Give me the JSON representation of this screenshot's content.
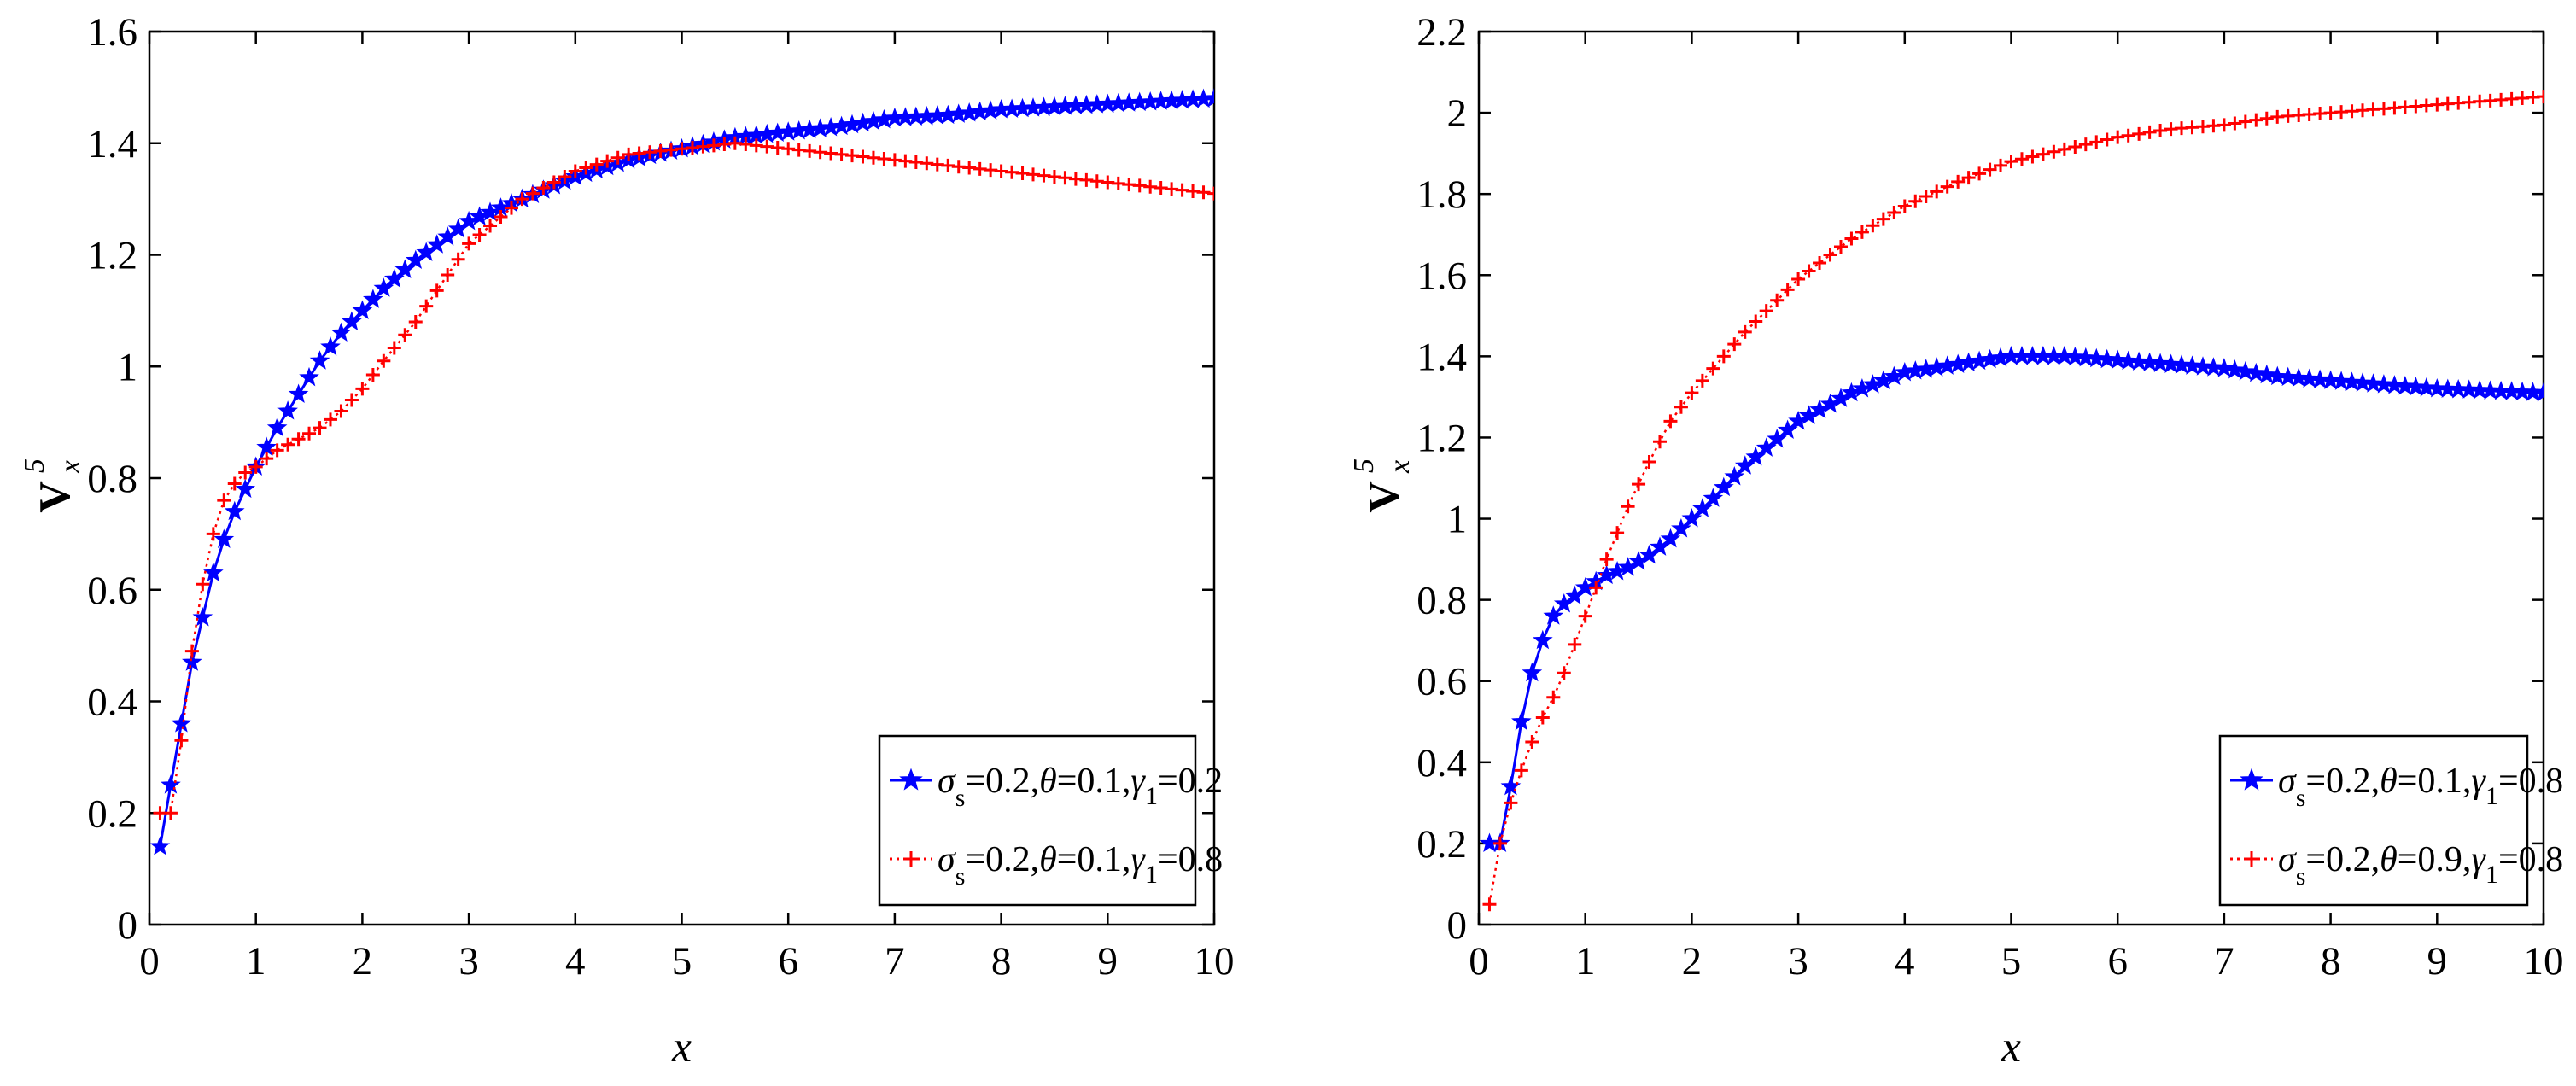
{
  "chart_data": [
    {
      "type": "line",
      "xlabel": "x",
      "ylabel": {
        "main": "V",
        "sup": "5",
        "sub": "x"
      },
      "xlim": [
        0,
        10
      ],
      "ylim": [
        0,
        1.6
      ],
      "xticks": [
        0,
        1,
        2,
        3,
        4,
        5,
        6,
        7,
        8,
        9,
        10
      ],
      "yticks": [
        0,
        0.2,
        0.4,
        0.6,
        0.8,
        1,
        1.2,
        1.4,
        1.6
      ],
      "xtick_labels": [
        "0",
        "1",
        "2",
        "3",
        "4",
        "5",
        "6",
        "7",
        "8",
        "9",
        "10"
      ],
      "ytick_labels": [
        "0",
        "0.2",
        "0.4",
        "0.6",
        "0.8",
        "1",
        "1.2",
        "1.4",
        "1.6"
      ],
      "legend_position": "bottom-right",
      "series": [
        {
          "name": "σs=0.2,θ=0.1,γ1=0.2",
          "legend": {
            "sigma": "σ",
            "sigma_sub": "s",
            "text1": "=0.2,",
            "theta": "θ",
            "text2": "=0.1,",
            "gamma": "γ",
            "gamma_sub": "1",
            "text3": "=0.2"
          },
          "color": "#0000ff",
          "line_style": "solid",
          "marker": "star",
          "x": [
            0.1,
            0.2,
            0.3,
            0.4,
            0.5,
            0.6,
            0.7,
            0.8,
            0.9,
            1.0,
            1.2,
            1.4,
            1.6,
            1.8,
            2.0,
            2.2,
            2.5,
            3.0,
            3.5,
            4.0,
            4.5,
            5.0,
            5.5,
            6.0,
            6.5,
            7.0,
            7.5,
            8.0,
            8.5,
            9.0,
            9.5,
            10.0
          ],
          "y": [
            0.14,
            0.25,
            0.36,
            0.47,
            0.55,
            0.63,
            0.69,
            0.74,
            0.78,
            0.82,
            0.89,
            0.95,
            1.01,
            1.06,
            1.1,
            1.14,
            1.19,
            1.26,
            1.3,
            1.34,
            1.37,
            1.39,
            1.41,
            1.42,
            1.43,
            1.445,
            1.45,
            1.46,
            1.465,
            1.47,
            1.475,
            1.48
          ]
        },
        {
          "name": "σs=0.2,θ=0.1,γ1=0.8",
          "legend": {
            "sigma": "σ",
            "sigma_sub": "s",
            "text1": "=0.2,",
            "theta": "θ",
            "text2": "=0.1,",
            "gamma": "γ",
            "gamma_sub": "1",
            "text3": "=0.8"
          },
          "color": "#ff0000",
          "line_style": "dotted",
          "marker": "plus",
          "x": [
            0.1,
            0.2,
            0.3,
            0.4,
            0.5,
            0.6,
            0.7,
            0.8,
            0.9,
            1.0,
            1.2,
            1.4,
            1.6,
            1.8,
            2.0,
            2.2,
            2.5,
            3.0,
            3.5,
            4.0,
            4.5,
            5.0,
            5.5,
            6.0,
            6.5,
            7.0,
            7.5,
            8.0,
            8.5,
            9.0,
            9.5,
            10.0
          ],
          "y": [
            0.2,
            0.2,
            0.33,
            0.49,
            0.61,
            0.7,
            0.76,
            0.79,
            0.81,
            0.82,
            0.85,
            0.87,
            0.89,
            0.92,
            0.96,
            1.01,
            1.08,
            1.22,
            1.3,
            1.35,
            1.38,
            1.39,
            1.4,
            1.39,
            1.38,
            1.37,
            1.36,
            1.35,
            1.34,
            1.33,
            1.32,
            1.31
          ]
        }
      ]
    },
    {
      "type": "line",
      "xlabel": "x",
      "ylabel": {
        "main": "V",
        "sup": "5",
        "sub": "x"
      },
      "xlim": [
        0,
        10
      ],
      "ylim": [
        0,
        2.2
      ],
      "xticks": [
        0,
        1,
        2,
        3,
        4,
        5,
        6,
        7,
        8,
        9,
        10
      ],
      "yticks": [
        0,
        0.2,
        0.4,
        0.6,
        0.8,
        1,
        1.2,
        1.4,
        1.6,
        1.8,
        2,
        2.2
      ],
      "xtick_labels": [
        "0",
        "1",
        "2",
        "3",
        "4",
        "5",
        "6",
        "7",
        "8",
        "9",
        "10"
      ],
      "ytick_labels": [
        "0",
        "0.2",
        "0.4",
        "0.6",
        "0.8",
        "1",
        "1.2",
        "1.4",
        "1.6",
        "1.8",
        "2",
        "2.2"
      ],
      "legend_position": "bottom-right",
      "series": [
        {
          "name": "σs=0.2,θ=0.1,γ1=0.8",
          "legend": {
            "sigma": "σ",
            "sigma_sub": "s",
            "text1": "=0.2,",
            "theta": "θ",
            "text2": "=0.1,",
            "gamma": "γ",
            "gamma_sub": "1",
            "text3": "=0.8"
          },
          "color": "#0000ff",
          "line_style": "solid",
          "marker": "star",
          "x": [
            0.1,
            0.2,
            0.3,
            0.4,
            0.5,
            0.6,
            0.7,
            0.8,
            0.9,
            1.0,
            1.2,
            1.4,
            1.6,
            1.8,
            2.0,
            2.2,
            2.5,
            3.0,
            3.5,
            4.0,
            4.5,
            5.0,
            5.5,
            6.0,
            6.5,
            7.0,
            7.5,
            8.0,
            8.5,
            9.0,
            9.5,
            10.0
          ],
          "y": [
            0.2,
            0.2,
            0.34,
            0.5,
            0.62,
            0.7,
            0.76,
            0.79,
            0.81,
            0.83,
            0.86,
            0.88,
            0.91,
            0.95,
            1.0,
            1.05,
            1.13,
            1.24,
            1.31,
            1.36,
            1.38,
            1.4,
            1.4,
            1.39,
            1.38,
            1.37,
            1.35,
            1.34,
            1.33,
            1.32,
            1.315,
            1.31
          ]
        },
        {
          "name": "σs=0.2,θ=0.9,γ1=0.8",
          "legend": {
            "sigma": "σ",
            "sigma_sub": "s",
            "text1": "=0.2,",
            "theta": "θ",
            "text2": "=0.9,",
            "gamma": "γ",
            "gamma_sub": "1",
            "text3": "=0.8"
          },
          "color": "#ff0000",
          "line_style": "dotted",
          "marker": "plus",
          "x": [
            0.1,
            0.2,
            0.3,
            0.4,
            0.5,
            0.6,
            0.7,
            0.8,
            0.9,
            1.0,
            1.2,
            1.4,
            1.6,
            1.8,
            2.0,
            2.2,
            2.5,
            3.0,
            3.5,
            4.0,
            4.5,
            5.0,
            5.5,
            6.0,
            6.5,
            7.0,
            7.5,
            8.0,
            8.5,
            9.0,
            9.5,
            10.0
          ],
          "y": [
            0.05,
            0.2,
            0.3,
            0.38,
            0.45,
            0.51,
            0.56,
            0.62,
            0.69,
            0.76,
            0.9,
            1.03,
            1.14,
            1.24,
            1.31,
            1.37,
            1.46,
            1.59,
            1.69,
            1.77,
            1.83,
            1.88,
            1.91,
            1.94,
            1.96,
            1.97,
            1.99,
            2.0,
            2.01,
            2.02,
            2.03,
            2.04
          ]
        }
      ]
    }
  ]
}
